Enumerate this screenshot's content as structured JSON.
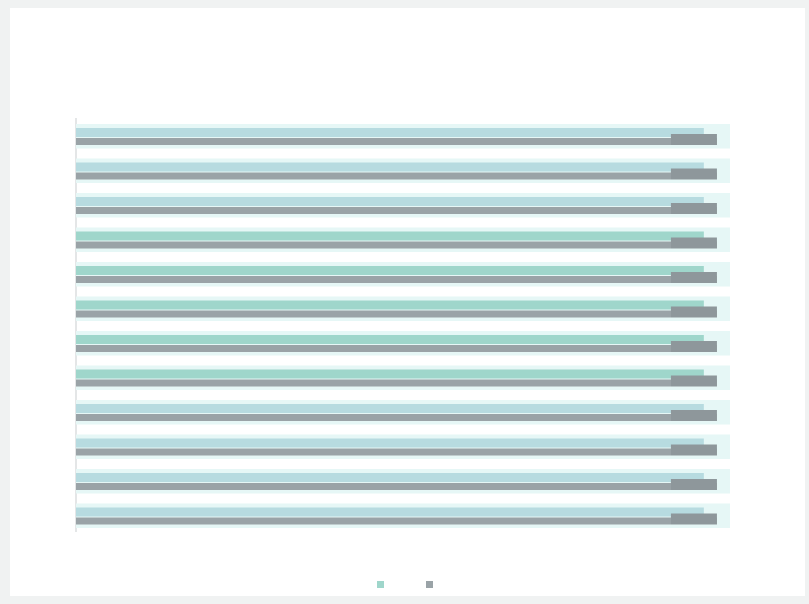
{
  "chart": {
    "title_line1": "",
    "title_line2": ""
  },
  "colors": {
    "series_a": "#9fd6cb",
    "series_b": "#9aa3a7",
    "band_light": "#e6f7f6",
    "label": "#9aa0a4"
  },
  "chart_data": {
    "type": "bar",
    "orientation": "horizontal",
    "title": "",
    "categories": [
      "",
      "",
      "",
      "",
      "",
      "",
      "",
      "",
      "",
      "",
      "",
      ""
    ],
    "series": [
      {
        "values": [
          0.96,
          0.96,
          0.96,
          0.96,
          0.96,
          0.96,
          0.96,
          0.96,
          0.96,
          0.96,
          0.96,
          0.96
        ],
        "highlight": [
          false,
          false,
          false,
          true,
          true,
          true,
          true,
          true,
          false,
          false,
          false,
          false
        ]
      },
      {
        "values": [
          0.98,
          0.98,
          0.98,
          0.98,
          0.98,
          0.98,
          0.98,
          0.98,
          0.98,
          0.98,
          0.98,
          0.98
        ]
      }
    ],
    "data_labels": [
      "",
      "",
      "",
      "",
      "",
      "",
      "",
      "",
      "",
      "",
      "",
      ""
    ],
    "legend": [
      "",
      ""
    ],
    "legend_position": "bottom",
    "xlim": [
      0,
      1
    ],
    "grid": false
  }
}
